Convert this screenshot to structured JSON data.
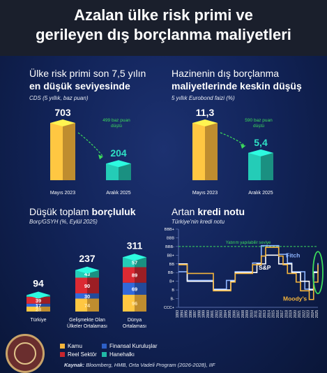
{
  "title": {
    "line1": "Azalan ülke risk primi ve",
    "line2": "gerileyen dış borçlanma maliyetleri"
  },
  "panel1": {
    "title_line1": "Ülke risk primi son 7,5 yılın",
    "title_line2": "en düşük seviyesinde",
    "subtitle": "CDS (5 yıllık, baz puan)",
    "annotation_line1": "499 baz puan",
    "annotation_line2": "düştü"
  },
  "panel2": {
    "title_line1": "Hazinenin dış borçlanma",
    "title_line2": "maliyetlerinde keskin düşüş",
    "subtitle": "5 yıllık Eurobond faizi (%)",
    "annotation_line1": "590 baz puan",
    "annotation_line2": "düştü"
  },
  "panel3": {
    "title_line1": "Düşük toplam",
    "title_bold": "borçluluk",
    "subtitle": "Borç/GSYH (%, Eylül 2025)"
  },
  "panel4": {
    "title_line1": "Artan",
    "title_bold": "kredi notu",
    "subtitle": "Türkiye’nin kredi notu",
    "threshold_label": "Yatırım yapılabilir seviye",
    "agency_labels": [
      "Fitch",
      "S&P",
      "Moody’s"
    ]
  },
  "legend": [
    "Kamu",
    "Finansal Kuruluşlar",
    "Reel Sektör",
    "Hanehalkı"
  ],
  "source": {
    "label": "Kaynak:",
    "text": "Bloomberg, HMB, Orta Vadeli Program (2026-2028), IIF"
  },
  "colors": {
    "gold": "#f5b53c",
    "teal": "#21b9a6",
    "red": "#c8262e",
    "blue": "#2d5fc6",
    "green_dash": "#3ddc5c",
    "fitch": "#8fb6ff",
    "sp": "#ffffff",
    "moodys": "#f5b53c"
  },
  "chart_data": [
    {
      "type": "bar",
      "title": "Ülke risk primi son 7,5 yılın en düşük seviyesinde",
      "ylabel": "CDS (5 yıllık, baz puan)",
      "categories": [
        "Mayıs 2023",
        "Aralık 2025"
      ],
      "values": [
        703,
        204
      ],
      "value_labels": [
        "703",
        "204"
      ],
      "ylim": [
        0,
        703
      ]
    },
    {
      "type": "bar",
      "title": "Hazinenin dış borçlanma maliyetlerinde keskin düşüş",
      "ylabel": "5 yıllık Eurobond faizi (%)",
      "categories": [
        "Mayıs 2023",
        "Aralık 2025"
      ],
      "values": [
        11.3,
        5.4
      ],
      "value_labels": [
        "11,3",
        "5,4"
      ],
      "ylim": [
        0,
        11.3
      ]
    },
    {
      "type": "bar",
      "stacked": true,
      "title": "Düşük toplam borçluluk",
      "ylabel": "Borç/GSYH (%, Eylül 2025)",
      "categories": [
        "Türkiye",
        "Gelişmekte Olan Ülkeler Ortalaması",
        "Dünya Ortalaması"
      ],
      "category_lines": [
        [
          "Türkiye"
        ],
        [
          "Gelişmekte Olan",
          "Ülkeler Ortalaması"
        ],
        [
          "Dünya",
          "Ortalaması"
        ]
      ],
      "totals": [
        94,
        237,
        311
      ],
      "series": [
        {
          "name": "Kamu",
          "values": [
            28,
            74,
            96
          ]
        },
        {
          "name": "Finansal Kuruluşlar",
          "values": [
            17,
            30,
            69
          ]
        },
        {
          "name": "Reel Sektör",
          "values": [
            39,
            90,
            89
          ]
        },
        {
          "name": "Hanehalkı",
          "values": [
            10,
            43,
            57
          ]
        }
      ],
      "legend": "bottom"
    },
    {
      "type": "line",
      "title": "Artan kredi notu",
      "ylabel": "Türkiye’nin kredi notu",
      "y_categories": [
        "CCC+",
        "B-",
        "B",
        "B+",
        "BB-",
        "BB",
        "BB+",
        "BBB-",
        "BBB",
        "BBB+"
      ],
      "x": [
        "1993",
        "1994",
        "1995",
        "1996",
        "1997",
        "1998",
        "1999",
        "2000",
        "2001",
        "2002",
        "2003",
        "2004",
        "2005",
        "2006",
        "2007",
        "2008",
        "2009",
        "2010",
        "2011",
        "2012",
        "2013",
        "2014",
        "2015",
        "2016",
        "2017",
        "2018",
        "2019",
        "2020",
        "2021",
        "2022",
        "2023",
        "2024",
        "2025"
      ],
      "threshold": {
        "label": "Yatırım yapılabilir seviye",
        "value": "BBB-"
      },
      "series": [
        {
          "name": "Fitch",
          "values": [
            4,
            4,
            3,
            3,
            3,
            3,
            3,
            3,
            2,
            2,
            2,
            3,
            3,
            4,
            4,
            4,
            4,
            5,
            5,
            7,
            7,
            7,
            7,
            6,
            6,
            5,
            4,
            4,
            4,
            2,
            2,
            4,
            5
          ]
        },
        {
          "name": "S&P",
          "values": [
            5,
            5,
            3,
            3,
            3,
            3,
            3,
            3,
            2,
            2,
            2,
            2,
            3,
            4,
            4,
            4,
            4,
            4,
            5,
            5,
            6,
            6,
            6,
            5,
            5,
            5,
            4,
            4,
            3,
            3,
            2,
            4,
            4
          ]
        },
        {
          "name": "Moody’s",
          "values": [
            5,
            5,
            4,
            4,
            4,
            4,
            4,
            4,
            2,
            2,
            2,
            2,
            3,
            4,
            4,
            4,
            4,
            5,
            5,
            6,
            7,
            7,
            7,
            6,
            5,
            4,
            4,
            3,
            2,
            2,
            1,
            3,
            5
          ]
        }
      ]
    }
  ]
}
